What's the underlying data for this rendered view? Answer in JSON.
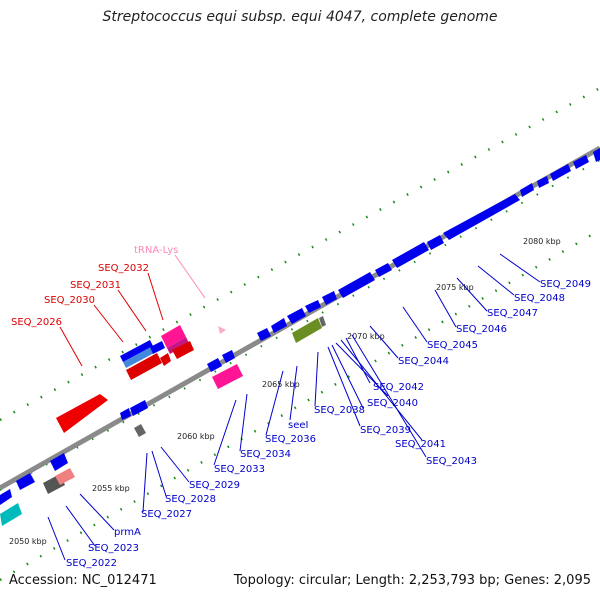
{
  "title": "Streptococcus equi subsp. equi 4047, complete genome",
  "footer": {
    "accession": "Accession: NC_012471",
    "summary": "Topology: circular; Length: 2,253,793 bp; Genes: 2,095"
  },
  "colors": {
    "backbone": "#8a8a8a",
    "cds": "#0000ee",
    "selected": "#ee0000",
    "trna": "#ff69b4",
    "other": "#6b8e23",
    "pseudo": "#666666",
    "tick": "#1a8a1a",
    "label_blue": "#0000cc",
    "label_red": "#dd0000",
    "label_pink": "#ff88bb"
  },
  "ticks": [
    "2050 kbp",
    "2055 kbp",
    "2060 kbp",
    "2065 kbp",
    "2070 kbp",
    "2075 kbp",
    "2080 kbp"
  ],
  "labels": {
    "trna_lys": "tRNA-Lys",
    "seq_2032": "SEQ_2032",
    "seq_2031": "SEQ_2031",
    "seq_2030": "SEQ_2030",
    "seq_2026": "SEQ_2026",
    "seq_2022": "SEQ_2022",
    "seq_2023": "SEQ_2023",
    "prma": "prmA",
    "seq_2027": "SEQ_2027",
    "seq_2028": "SEQ_2028",
    "seq_2029": "SEQ_2029",
    "seq_2033": "SEQ_2033",
    "seq_2034": "SEQ_2034",
    "seq_2036": "SEQ_2036",
    "seei": "seeI",
    "seq_2038": "SEQ_2038",
    "seq_2039": "SEQ_2039",
    "seq_2040": "SEQ_2040",
    "seq_2041": "SEQ_2041",
    "seq_2042": "SEQ_2042",
    "seq_2043": "SEQ_2043",
    "seq_2044": "SEQ_2044",
    "seq_2045": "SEQ_2045",
    "seq_2046": "SEQ_2046",
    "seq_2047": "SEQ_2047",
    "seq_2048": "SEQ_2048",
    "seq_2049": "SEQ_2049"
  }
}
